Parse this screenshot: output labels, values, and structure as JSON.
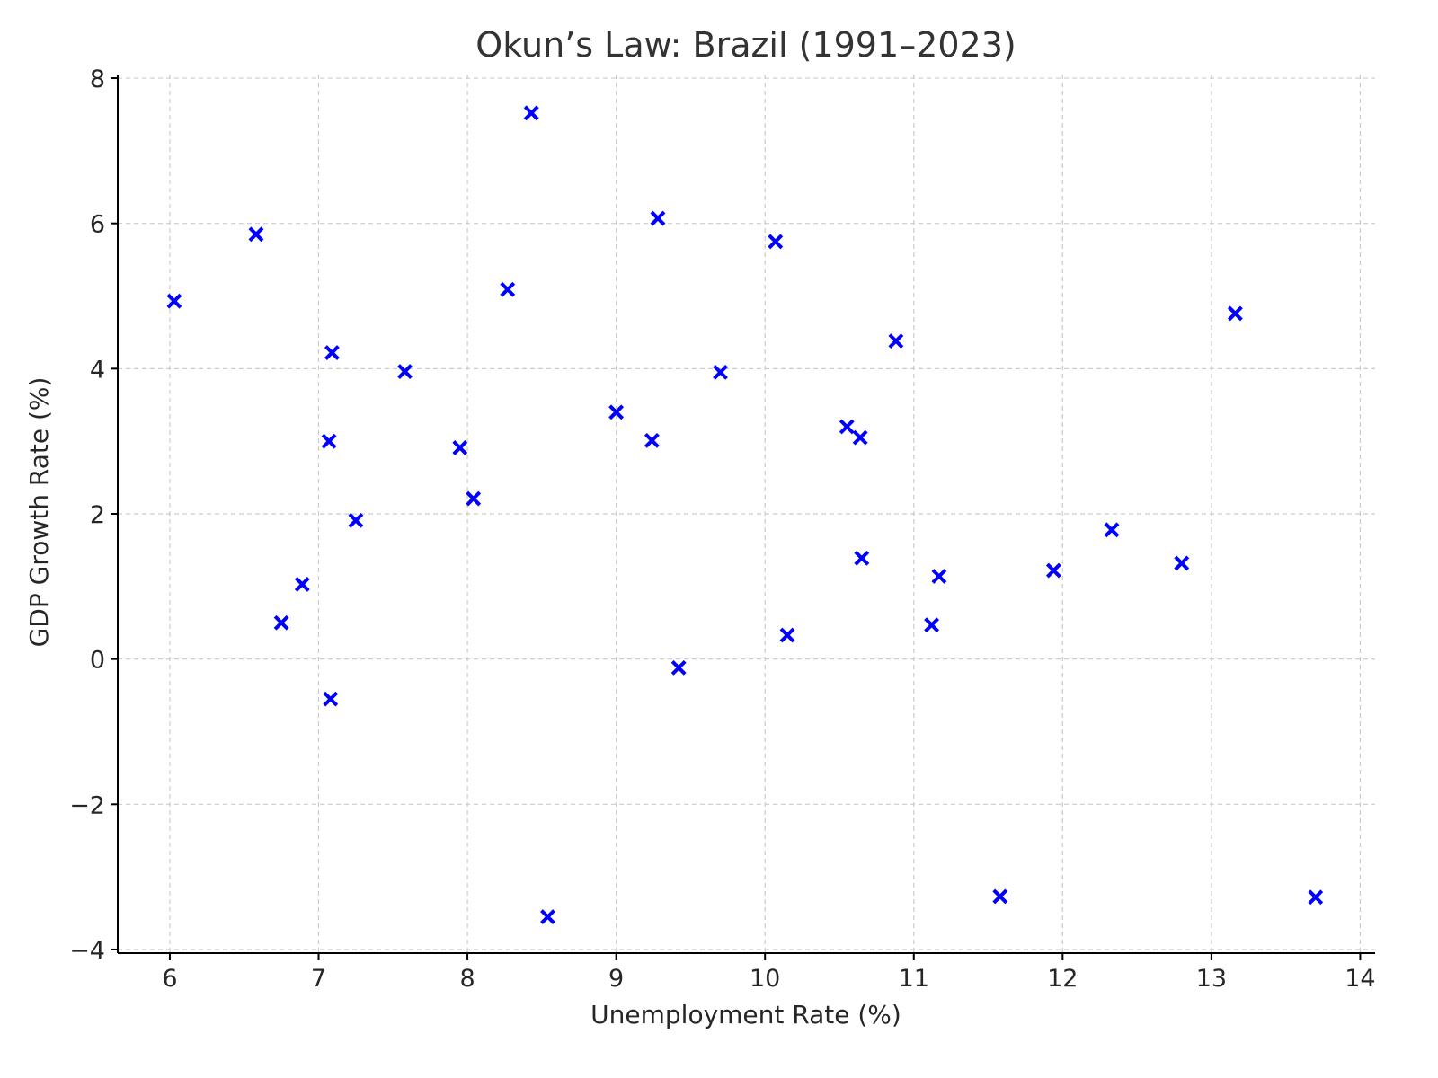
{
  "chart_data": {
    "type": "scatter",
    "title": "Okun’s Law: Brazil (1991–2023)",
    "xlabel": "Unemployment Rate (%)",
    "ylabel": "GDP Growth Rate (%)",
    "xlim": [
      5.65,
      14.1
    ],
    "ylim": [
      -4.05,
      8.05
    ],
    "xticks": [
      6,
      7,
      8,
      9,
      10,
      11,
      12,
      13,
      14
    ],
    "yticks": [
      -4,
      -2,
      0,
      2,
      4,
      6,
      8
    ],
    "xtick_labels": [
      "6",
      "7",
      "8",
      "9",
      "10",
      "11",
      "12",
      "13",
      "14"
    ],
    "ytick_labels": [
      "−4",
      "−2",
      "0",
      "2",
      "4",
      "6",
      "8"
    ],
    "grid": true,
    "marker": "x",
    "marker_color": "#0000ff",
    "points": [
      {
        "x": 6.03,
        "y": 4.93
      },
      {
        "x": 6.58,
        "y": 5.85
      },
      {
        "x": 6.75,
        "y": 0.5
      },
      {
        "x": 6.89,
        "y": 1.03
      },
      {
        "x": 7.07,
        "y": 3.0
      },
      {
        "x": 7.09,
        "y": 4.22
      },
      {
        "x": 7.08,
        "y": -0.55
      },
      {
        "x": 7.25,
        "y": 1.91
      },
      {
        "x": 7.58,
        "y": 3.96
      },
      {
        "x": 7.95,
        "y": 2.91
      },
      {
        "x": 8.04,
        "y": 2.21
      },
      {
        "x": 8.27,
        "y": 5.09
      },
      {
        "x": 8.43,
        "y": 7.52
      },
      {
        "x": 8.54,
        "y": -3.55
      },
      {
        "x": 9.0,
        "y": 3.4
      },
      {
        "x": 9.24,
        "y": 3.01
      },
      {
        "x": 9.28,
        "y": 6.07
      },
      {
        "x": 9.42,
        "y": -0.12
      },
      {
        "x": 9.7,
        "y": 3.95
      },
      {
        "x": 10.07,
        "y": 5.75
      },
      {
        "x": 10.15,
        "y": 0.33
      },
      {
        "x": 10.55,
        "y": 3.2
      },
      {
        "x": 10.64,
        "y": 3.05
      },
      {
        "x": 10.65,
        "y": 1.39
      },
      {
        "x": 10.88,
        "y": 4.38
      },
      {
        "x": 11.12,
        "y": 0.47
      },
      {
        "x": 11.17,
        "y": 1.14
      },
      {
        "x": 11.58,
        "y": -3.27
      },
      {
        "x": 11.94,
        "y": 1.22
      },
      {
        "x": 12.33,
        "y": 1.78
      },
      {
        "x": 12.8,
        "y": 1.32
      },
      {
        "x": 13.16,
        "y": 4.76
      },
      {
        "x": 13.7,
        "y": -3.28
      }
    ]
  }
}
